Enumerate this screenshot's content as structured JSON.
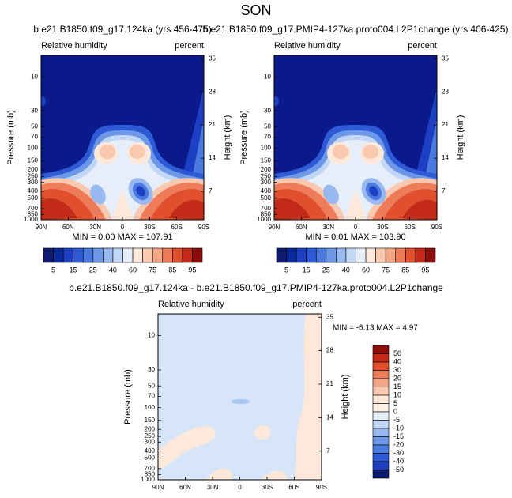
{
  "title": "SON",
  "chart_data": [
    {
      "type": "contour",
      "title": "b.e21.B1850.f09_g17.124ka (yrs 456-475)",
      "left_label": "Relative humidity",
      "right_label": "percent",
      "ylabel": "Pressure (mb)",
      "y2label": "Height (km)",
      "stats": "MIN =  0.00   MAX = 107.91",
      "xlim": [
        90,
        -90
      ],
      "xticks": [
        {
          "value": 90,
          "label": "90N"
        },
        {
          "value": 60,
          "label": "60N"
        },
        {
          "value": 30,
          "label": "30N"
        },
        0,
        {
          "value": -30,
          "label": "30S"
        },
        {
          "value": -60,
          "label": "60S"
        },
        {
          "value": -90,
          "label": "90S"
        }
      ],
      "ylim": [
        1000,
        5
      ],
      "log_y": true,
      "yticks": [
        10,
        30,
        50,
        70,
        100,
        150,
        200,
        250,
        300,
        400,
        500,
        700,
        850,
        1000
      ],
      "y2lim": [
        1,
        35.7
      ],
      "y2ticks": [
        35,
        28,
        21,
        14,
        7
      ],
      "colorbar": {
        "orientation": "horizontal",
        "labels": [
          5,
          15,
          25,
          40,
          60,
          75,
          85,
          95
        ],
        "colors": [
          "#0d1a70",
          "#0a2a9c",
          "#1c3fc4",
          "#2e5ad6",
          "#4a7ae0",
          "#6d98e8",
          "#98b8f0",
          "#c2d6f6",
          "#e6eefa",
          "#fde8da",
          "#f9c8ae",
          "#f4a584",
          "#ee7c5a",
          "#e0502e",
          "#c42a18",
          "#8c0e0a"
        ]
      }
    },
    {
      "type": "contour",
      "title": "b.e21.B1850.f09_g17.PMIP4-127ka.proto004.L2P1change (yrs 406-425)",
      "left_label": "Relative humidity",
      "right_label": "percent",
      "ylabel": "Pressure (mb)",
      "y2label": "Height (km)",
      "stats": "MIN =  0.01   MAX = 103.90",
      "xlim": [
        90,
        -90
      ],
      "xticks": [
        {
          "value": 90,
          "label": "90N"
        },
        {
          "value": 60,
          "label": "60N"
        },
        {
          "value": 30,
          "label": "30N"
        },
        0,
        {
          "value": -30,
          "label": "30S"
        },
        {
          "value": -60,
          "label": "60S"
        },
        {
          "value": -90,
          "label": "90S"
        }
      ],
      "ylim": [
        1000,
        5
      ],
      "log_y": true,
      "yticks": [
        10,
        30,
        50,
        70,
        100,
        150,
        200,
        250,
        300,
        400,
        500,
        700,
        850,
        1000
      ],
      "y2lim": [
        1,
        35.7
      ],
      "y2ticks": [
        35,
        28,
        21,
        14,
        7
      ],
      "colorbar": {
        "orientation": "horizontal",
        "labels": [
          5,
          15,
          25,
          40,
          60,
          75,
          85,
          95
        ],
        "colors": [
          "#0d1a70",
          "#0a2a9c",
          "#1c3fc4",
          "#2e5ad6",
          "#4a7ae0",
          "#6d98e8",
          "#98b8f0",
          "#c2d6f6",
          "#e6eefa",
          "#fde8da",
          "#f9c8ae",
          "#f4a584",
          "#ee7c5a",
          "#e0502e",
          "#c42a18",
          "#8c0e0a"
        ]
      }
    },
    {
      "type": "contour",
      "title": "b.e21.B1850.f09_g17.124ka - b.e21.B1850.f09_g17.PMIP4-127ka.proto004.L2P1change",
      "left_label": "Relative humidity",
      "right_label": "percent",
      "ylabel": "Pressure (mb)",
      "y2label": "Height (km)",
      "stats": "MIN = -6.13   MAX =  4.97",
      "xlim": [
        90,
        -90
      ],
      "xticks": [
        {
          "value": 90,
          "label": "90N"
        },
        {
          "value": 60,
          "label": "60N"
        },
        {
          "value": 30,
          "label": "30N"
        },
        0,
        {
          "value": -30,
          "label": "30S"
        },
        {
          "value": -60,
          "label": "60S"
        },
        {
          "value": -90,
          "label": "90S"
        }
      ],
      "ylim": [
        1000,
        5
      ],
      "log_y": true,
      "yticks": [
        10,
        30,
        50,
        70,
        100,
        150,
        200,
        250,
        300,
        400,
        500,
        700,
        850,
        1000
      ],
      "y2lim": [
        1,
        35.7
      ],
      "y2ticks": [
        35,
        28,
        21,
        14,
        7
      ],
      "colorbar": {
        "orientation": "vertical",
        "labels": [
          50,
          40,
          30,
          20,
          15,
          10,
          5,
          0,
          -5,
          -10,
          -15,
          -20,
          -30,
          -40,
          -50
        ],
        "colors": [
          "#8c0e0a",
          "#c42a18",
          "#e0502e",
          "#ee7c5a",
          "#f4a584",
          "#f9c8ae",
          "#fde8da",
          "#fdf0e6",
          "#e6eefa",
          "#c2d6f6",
          "#98b8f0",
          "#6d98e8",
          "#4a7ae0",
          "#2e5ad6",
          "#1c3fc4",
          "#0d1a70"
        ]
      }
    }
  ]
}
